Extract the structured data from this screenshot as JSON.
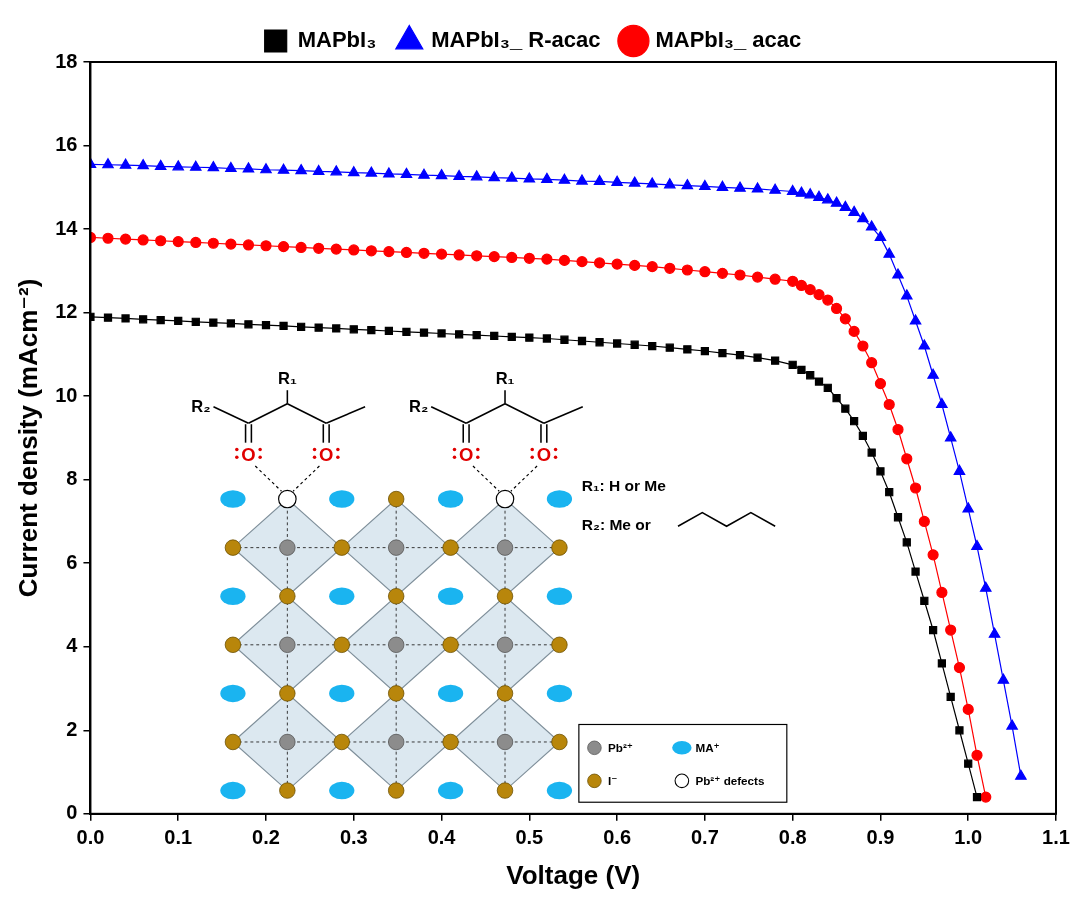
{
  "chart_data": {
    "type": "line",
    "x_label": "Voltage (V)",
    "y_label": "Current density (mAcm⁻²)",
    "x": [
      0,
      0.02,
      0.04,
      0.06,
      0.08,
      0.1,
      0.12,
      0.14,
      0.16,
      0.18,
      0.2,
      0.22,
      0.24,
      0.26,
      0.28,
      0.3,
      0.32,
      0.34,
      0.36,
      0.38,
      0.4,
      0.42,
      0.44,
      0.46,
      0.48,
      0.5,
      0.52,
      0.54,
      0.56,
      0.58,
      0.6,
      0.62,
      0.64,
      0.66,
      0.68,
      0.7,
      0.72,
      0.74,
      0.76,
      0.78,
      0.8,
      0.81,
      0.82,
      0.83,
      0.84,
      0.85,
      0.86,
      0.87,
      0.88,
      0.89,
      0.9,
      0.91,
      0.92,
      0.93,
      0.94,
      0.95,
      0.96,
      0.97,
      0.98,
      0.99,
      1.0,
      1.01,
      1.02,
      1.03,
      1.04,
      1.05,
      1.06
    ],
    "series": [
      {
        "name": "MAPbI₃",
        "color": "#000000",
        "marker": "square",
        "line_style": "solid",
        "values": [
          11.9,
          11.88,
          11.86,
          11.84,
          11.82,
          11.8,
          11.78,
          11.76,
          11.74,
          11.72,
          11.7,
          11.68,
          11.66,
          11.64,
          11.62,
          11.6,
          11.58,
          11.56,
          11.54,
          11.52,
          11.5,
          11.48,
          11.46,
          11.44,
          11.42,
          11.4,
          11.38,
          11.35,
          11.32,
          11.29,
          11.26,
          11.23,
          11.2,
          11.16,
          11.12,
          11.08,
          11.03,
          10.98,
          10.92,
          10.85,
          10.75,
          10.63,
          10.5,
          10.35,
          10.2,
          9.95,
          9.7,
          9.4,
          9.05,
          8.65,
          8.2,
          7.7,
          7.1,
          6.5,
          5.8,
          5.1,
          4.4,
          3.6,
          2.8,
          2.0,
          1.2,
          0.4,
          null,
          null,
          null,
          null,
          null
        ]
      },
      {
        "name": "MAPbI₃_ R-acac",
        "color": "#0000ff",
        "marker": "triangle",
        "line_style": "solid",
        "values": [
          15.55,
          15.54,
          15.53,
          15.52,
          15.5,
          15.49,
          15.48,
          15.47,
          15.45,
          15.44,
          15.42,
          15.41,
          15.4,
          15.38,
          15.37,
          15.35,
          15.34,
          15.32,
          15.31,
          15.29,
          15.28,
          15.26,
          15.25,
          15.23,
          15.22,
          15.2,
          15.19,
          15.17,
          15.15,
          15.14,
          15.12,
          15.1,
          15.08,
          15.06,
          15.04,
          15.02,
          15.0,
          14.98,
          14.96,
          14.93,
          14.9,
          14.86,
          14.82,
          14.76,
          14.7,
          14.62,
          14.52,
          14.4,
          14.25,
          14.05,
          13.8,
          13.4,
          12.9,
          12.4,
          11.8,
          11.2,
          10.5,
          9.8,
          9.0,
          8.2,
          7.3,
          6.4,
          5.4,
          4.3,
          3.2,
          2.1,
          0.9
        ]
      },
      {
        "name": "MAPbI₃_ acac",
        "color": "#ff0000",
        "marker": "circle",
        "line_style": "solid",
        "values": [
          13.8,
          13.78,
          13.76,
          13.74,
          13.72,
          13.7,
          13.68,
          13.66,
          13.64,
          13.62,
          13.6,
          13.58,
          13.56,
          13.54,
          13.52,
          13.5,
          13.48,
          13.46,
          13.44,
          13.42,
          13.4,
          13.38,
          13.36,
          13.34,
          13.32,
          13.3,
          13.28,
          13.25,
          13.22,
          13.19,
          13.16,
          13.13,
          13.1,
          13.06,
          13.02,
          12.98,
          12.94,
          12.9,
          12.85,
          12.8,
          12.75,
          12.65,
          12.55,
          12.43,
          12.3,
          12.1,
          11.85,
          11.55,
          11.2,
          10.8,
          10.3,
          9.8,
          9.2,
          8.5,
          7.8,
          7.0,
          6.2,
          5.3,
          4.4,
          3.5,
          2.5,
          1.4,
          0.4,
          null,
          null,
          null,
          null
        ]
      }
    ],
    "xlim": [
      0,
      1.1
    ],
    "xticks": [
      {
        "value": 0,
        "label": "0.0"
      },
      {
        "value": 0.1,
        "label": "0.1"
      },
      {
        "value": 0.2,
        "label": "0.2"
      },
      {
        "value": 0.3,
        "label": "0.3"
      },
      {
        "value": 0.4,
        "label": "0.4"
      },
      {
        "value": 0.5,
        "label": "0.5"
      },
      {
        "value": 0.6,
        "label": "0.6"
      },
      {
        "value": 0.7,
        "label": "0.7"
      },
      {
        "value": 0.8,
        "label": "0.8"
      },
      {
        "value": 0.9,
        "label": "0.9"
      },
      {
        "value": 1.0,
        "label": "1.0"
      },
      {
        "value": 1.1,
        "label": "1.1"
      }
    ],
    "ylim": [
      0,
      18
    ],
    "yticks": [
      0,
      2,
      4,
      6,
      8,
      10,
      12,
      14,
      16,
      18
    ],
    "grid": false,
    "legend": "top",
    "annotations": {
      "substituents": [
        "R₁",
        "R₂"
      ],
      "atom": "O",
      "notes": [
        "R₁: H or Me",
        "R₂: Me or"
      ],
      "key": [
        "Pb²⁺",
        "MA⁺",
        "I⁻",
        "Pb²⁺ defects"
      ]
    }
  }
}
